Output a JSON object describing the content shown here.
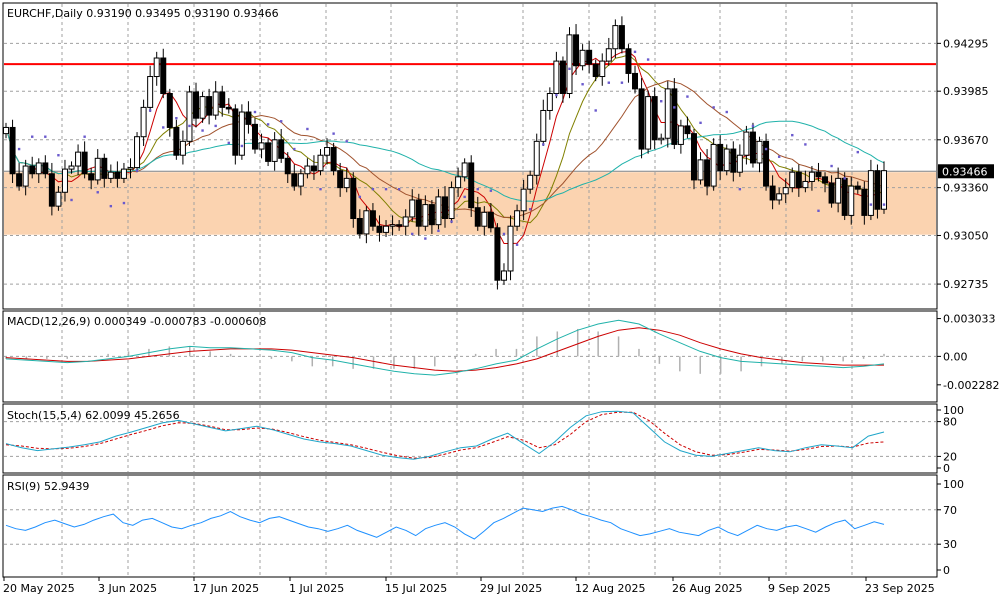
{
  "header": {
    "symbol_line": "EURCHF,Daily  0.93190 0.93495 0.93190 0.93466"
  },
  "panels": {
    "macd": {
      "label": "MACD(12,26,9) 0.000349 -0.000783 -0.000608"
    },
    "stoch": {
      "label": "Stoch(15,5,4) 62.0099 45.2656"
    },
    "rsi": {
      "label": "RSI(9) 52.9439"
    }
  },
  "colors": {
    "resistance_line": "#ff0000",
    "zone_fill": "#fbd3b0",
    "parabolic_sar": "#6a5acd",
    "ma_red": "#cc0000",
    "ma_olive": "#808000",
    "ma_brown": "#a0522d",
    "ma_teal": "#20b2aa",
    "macd_signal": "#cc0000",
    "macd_main": "#20b2aa",
    "macd_hist": "#b0b0b0",
    "stoch_main": "#1fa5c9",
    "stoch_signal": "#cc0000",
    "rsi_line": "#1e90ff",
    "price_marker": "#000000"
  },
  "chart_data": [
    {
      "type": "candlestick",
      "title": "EURCHF,Daily",
      "ylim": [
        0.9258,
        0.9455
      ],
      "yticks": [
        "0.94295",
        "0.93985",
        "0.93670",
        "0.93360",
        "0.93050",
        "0.92735"
      ],
      "ytick_values": [
        0.94295,
        0.93985,
        0.9367,
        0.9336,
        0.9305,
        0.92735
      ],
      "current_price": "0.93466",
      "current_price_value": 0.93466,
      "resistance_level": 0.9416,
      "support_zone": [
        0.93055,
        0.9346
      ],
      "xticks": [
        "20 May 2025",
        "3 Jun 2025",
        "17 Jun 2025",
        "1 Jul 2025",
        "15 Jul 2025",
        "29 Jul 2025",
        "12 Aug 2025",
        "26 Aug 2025",
        "9 Sep 2025",
        "23 Sep 2025"
      ],
      "close": [
        0.9375,
        0.9345,
        0.9337,
        0.935,
        0.9345,
        0.9352,
        0.9345,
        0.9324,
        0.9333,
        0.9348,
        0.935,
        0.9359,
        0.9345,
        0.9341,
        0.9355,
        0.9342,
        0.9346,
        0.9342,
        0.9348,
        0.9349,
        0.9369,
        0.9388,
        0.9408,
        0.942,
        0.9397,
        0.9375,
        0.9357,
        0.9366,
        0.9398,
        0.9381,
        0.9395,
        0.9383,
        0.9398,
        0.9388,
        0.9387,
        0.9357,
        0.9385,
        0.9377,
        0.9361,
        0.9365,
        0.9353,
        0.9367,
        0.9355,
        0.9345,
        0.9337,
        0.9345,
        0.935,
        0.9347,
        0.9357,
        0.9362,
        0.9347,
        0.9336,
        0.9342,
        0.9316,
        0.9306,
        0.9321,
        0.9311,
        0.9307,
        0.9311,
        0.9312,
        0.9311,
        0.9317,
        0.9328,
        0.9311,
        0.9325,
        0.9312,
        0.933,
        0.9316,
        0.9336,
        0.9343,
        0.9352,
        0.9323,
        0.9311,
        0.932,
        0.931,
        0.9276,
        0.9282,
        0.9311,
        0.9321,
        0.9335,
        0.9344,
        0.9366,
        0.9386,
        0.9397,
        0.9418,
        0.9397,
        0.9435,
        0.9415,
        0.9425,
        0.9416,
        0.9408,
        0.9418,
        0.9426,
        0.9441,
        0.9426,
        0.941,
        0.94,
        0.9361,
        0.9395,
        0.9367,
        0.9368,
        0.94,
        0.9364,
        0.9376,
        0.9371,
        0.9341,
        0.9354,
        0.9337,
        0.9364,
        0.9347,
        0.9361,
        0.9346,
        0.9357,
        0.9372,
        0.9352,
        0.9366,
        0.9337,
        0.9328,
        0.9332,
        0.9336,
        0.9346,
        0.9336,
        0.934,
        0.9346,
        0.9343,
        0.9339,
        0.9326,
        0.9342,
        0.9318,
        0.9337,
        0.9335,
        0.9318,
        0.9347,
        0.9322,
        0.9347
      ],
      "series_overlays": [
        {
          "name": "Parabolic SAR"
        },
        {
          "name": "Moving averages"
        }
      ]
    },
    {
      "type": "line",
      "title": "MACD(12,26,9) 0.000349 -0.000783 -0.000608",
      "ylim": [
        -0.0035,
        0.0034
      ],
      "yticks": [
        "0.003033",
        "0.00",
        "-0.002282"
      ],
      "ytick_values": [
        0.003033,
        0.0,
        -0.002282
      ],
      "macd_main": [
        -0.0002,
        -0.0003,
        -0.0004,
        -0.0005,
        -0.0004,
        -0.0002,
        0.0,
        0.0003,
        0.0006,
        0.0008,
        0.0007,
        0.0007,
        0.0006,
        0.0005,
        0.0003,
        -0.0001,
        -0.0003,
        -0.0006,
        -0.0009,
        -0.0012,
        -0.0014,
        -0.0015,
        -0.0013,
        -0.001,
        -0.0006,
        -0.0003,
        0.0006,
        0.0014,
        0.0021,
        0.0026,
        0.0029,
        0.0026,
        0.0018,
        0.0011,
        0.0004,
        -0.0001,
        -0.0004,
        -0.0005,
        -0.0006,
        -0.0007,
        -0.0008,
        -0.0009,
        -0.0008,
        -0.0006
      ],
      "macd_signal": [
        -0.0001,
        -0.0002,
        -0.0003,
        -0.0004,
        -0.0004,
        -0.0003,
        -0.0002,
        0.0,
        0.0002,
        0.0004,
        0.0005,
        0.0006,
        0.0006,
        0.0006,
        0.0005,
        0.0003,
        0.0001,
        -0.0001,
        -0.0004,
        -0.0007,
        -0.0009,
        -0.0011,
        -0.0012,
        -0.0011,
        -0.0009,
        -0.0006,
        -0.0002,
        0.0004,
        0.001,
        0.0016,
        0.0021,
        0.0023,
        0.0021,
        0.0017,
        0.0011,
        0.0006,
        0.0002,
        -0.0001,
        -0.0003,
        -0.0005,
        -0.0006,
        -0.0007,
        -0.0007,
        -0.0007
      ]
    },
    {
      "type": "line",
      "title": "Stoch(15,5,4) 62.0099 45.2656",
      "ylim": [
        0,
        100
      ],
      "yticks": [
        "100",
        "80",
        "20",
        "0"
      ],
      "ytick_values": [
        100,
        80,
        20,
        0
      ],
      "stoch_main": [
        42,
        35,
        30,
        33,
        36,
        40,
        45,
        55,
        62,
        70,
        78,
        82,
        76,
        70,
        64,
        68,
        72,
        66,
        58,
        50,
        45,
        42,
        38,
        30,
        22,
        18,
        15,
        20,
        28,
        35,
        38,
        50,
        60,
        42,
        25,
        45,
        70,
        90,
        97,
        98,
        95,
        70,
        45,
        30,
        22,
        20,
        25,
        30,
        35,
        30,
        28,
        35,
        40,
        38,
        35,
        55,
        62
      ],
      "stoch_signal": [
        40,
        38,
        34,
        33,
        34,
        37,
        42,
        50,
        58,
        65,
        73,
        78,
        77,
        72,
        66,
        66,
        69,
        67,
        61,
        54,
        48,
        44,
        40,
        34,
        27,
        21,
        17,
        18,
        24,
        31,
        35,
        44,
        54,
        48,
        35,
        40,
        58,
        80,
        92,
        96,
        96,
        82,
        60,
        40,
        28,
        22,
        23,
        27,
        32,
        31,
        29,
        32,
        37,
        38,
        36,
        43,
        45
      ]
    },
    {
      "type": "line",
      "title": "RSI(9) 52.9439",
      "ylim": [
        0,
        100
      ],
      "yticks": [
        "100",
        "70",
        "30",
        "0"
      ],
      "ytick_values": [
        100,
        70,
        30,
        0
      ],
      "rsi": [
        52,
        48,
        46,
        50,
        55,
        58,
        54,
        50,
        53,
        58,
        62,
        65,
        55,
        52,
        58,
        60,
        55,
        50,
        48,
        52,
        55,
        60,
        63,
        68,
        62,
        58,
        55,
        60,
        62,
        58,
        54,
        50,
        48,
        45,
        48,
        52,
        46,
        42,
        38,
        44,
        50,
        46,
        40,
        48,
        52,
        55,
        50,
        42,
        36,
        45,
        55,
        60,
        66,
        72,
        70,
        68,
        72,
        74,
        70,
        65,
        62,
        58,
        55,
        48,
        44,
        40,
        42,
        45,
        48,
        44,
        42,
        40,
        46,
        50,
        44,
        40,
        46,
        52,
        48,
        46,
        50,
        52,
        48,
        44,
        50,
        55,
        58,
        48,
        52,
        56,
        53
      ]
    }
  ]
}
